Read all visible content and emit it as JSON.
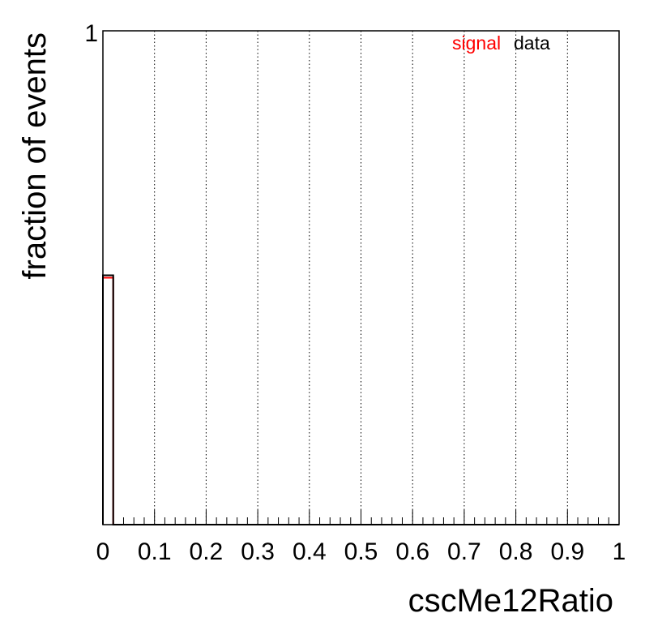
{
  "chart_data": {
    "type": "histogram",
    "title": "",
    "xlabel": "cscMe12Ratio",
    "ylabel": "fraction of events",
    "xlim": [
      0,
      1
    ],
    "ylim": [
      0,
      1
    ],
    "x_tick_labels": [
      "0",
      "0.1",
      "0.2",
      "0.3",
      "0.4",
      "0.5",
      "0.6",
      "0.7",
      "0.8",
      "0.9",
      "1"
    ],
    "y_tick_labels": [
      "1"
    ],
    "grid": {
      "x": true,
      "y": false,
      "style": "dotted"
    },
    "legend": {
      "position": "top-right",
      "entries": [
        "signal",
        "data"
      ]
    },
    "bin_width": 0.02,
    "bin_edges_start": 0,
    "series": [
      {
        "name": "signal",
        "color": "#ff0000",
        "values": [
          0.5,
          0,
          0,
          0,
          0,
          0,
          0,
          0,
          0,
          0,
          0,
          0,
          0,
          0,
          0,
          0,
          0,
          0,
          0,
          0,
          0,
          0,
          0,
          0,
          0,
          0,
          0,
          0,
          0,
          0,
          0,
          0,
          0,
          0,
          0,
          0,
          0,
          0,
          0,
          0,
          0,
          0,
          0,
          0,
          0,
          0,
          0,
          0,
          0,
          0
        ]
      },
      {
        "name": "data",
        "color": "#000000",
        "values": [
          0.505,
          0,
          0,
          0,
          0,
          0,
          0,
          0,
          0,
          0,
          0,
          0,
          0,
          0,
          0,
          0,
          0,
          0,
          0,
          0,
          0,
          0,
          0,
          0,
          0,
          0,
          0,
          0,
          0,
          0,
          0,
          0,
          0,
          0,
          0,
          0,
          0,
          0,
          0,
          0,
          0,
          0,
          0,
          0,
          0,
          0,
          0,
          0,
          0,
          0
        ]
      }
    ]
  }
}
